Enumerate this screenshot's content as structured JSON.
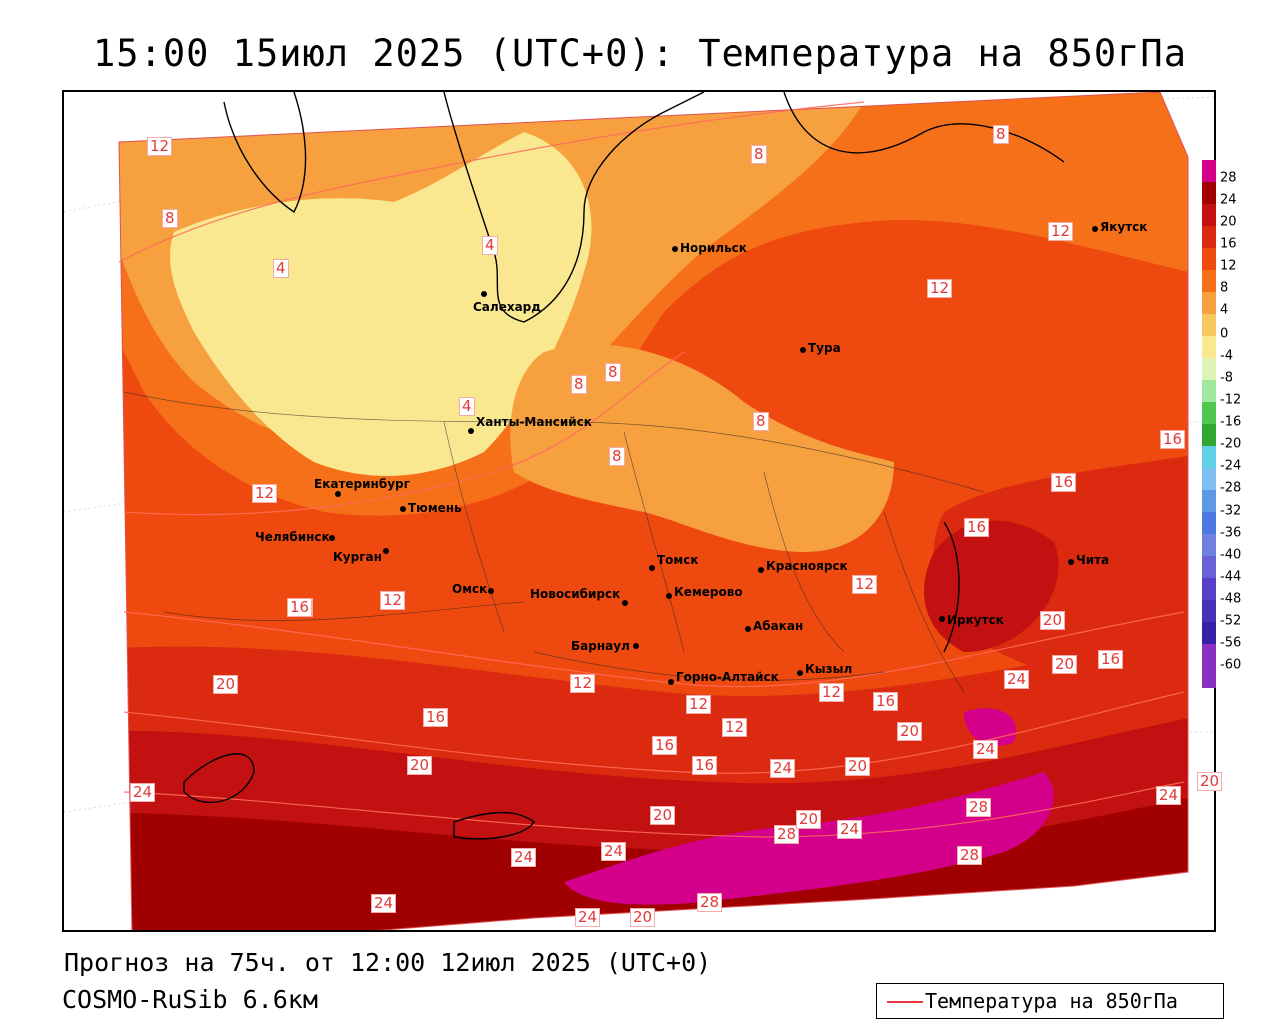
{
  "title": "15:00 15июл 2025 (UTC+0): Температура на 850гПа",
  "footer": {
    "forecast": "Прогноз на 75ч. от 12:00 12июл 2025 (UTC+0)",
    "model": "COSMO-RuSib 6.6км"
  },
  "legend": {
    "label": "Температура на 850гПа",
    "line_color": "#e8343c"
  },
  "colorbar": {
    "ticks": [
      "28",
      "24",
      "20",
      "16",
      "12",
      "8",
      "4",
      "0",
      "-4",
      "-8",
      "-12",
      "-16",
      "-20",
      "-24",
      "-28",
      "-32",
      "-36",
      "-40",
      "-44",
      "-48",
      "-52",
      "-56",
      "-60"
    ],
    "colors": [
      "#d4008c",
      "#a00000",
      "#c31010",
      "#dc2a10",
      "#ee4a10",
      "#f6701a",
      "#f6a040",
      "#f8c860",
      "#fae890",
      "#dff5b8",
      "#a0e8a0",
      "#50c850",
      "#30a830",
      "#60d0e8",
      "#80c0f0",
      "#6098e8",
      "#4c78e0",
      "#7080e0",
      "#6a60d8",
      "#5840c8",
      "#4830b8",
      "#3820a8",
      "#8a30c0"
    ]
  },
  "cities": [
    {
      "name": "Салехард"
    },
    {
      "name": "Норильск"
    },
    {
      "name": "Якутск"
    },
    {
      "name": "Тура"
    },
    {
      "name": "Ханты-Мансийск"
    },
    {
      "name": "Екатеринбург"
    },
    {
      "name": "Тюмень"
    },
    {
      "name": "Челябинск"
    },
    {
      "name": "Курган"
    },
    {
      "name": "Омск"
    },
    {
      "name": "Новосибирск"
    },
    {
      "name": "Томск"
    },
    {
      "name": "Кемерово"
    },
    {
      "name": "Красноярск"
    },
    {
      "name": "Барнаул"
    },
    {
      "name": "Абакан"
    },
    {
      "name": "Горно-Алтайск"
    },
    {
      "name": "Кызыл"
    },
    {
      "name": "Иркутск"
    },
    {
      "name": "Чита"
    }
  ],
  "contour_labels": [
    "12",
    "8",
    "4",
    "4",
    "8",
    "8",
    "8",
    "8",
    "8",
    "8",
    "12",
    "12",
    "4",
    "12",
    "16",
    "12",
    "12",
    "12",
    "16",
    "16",
    "16",
    "16",
    "20",
    "20",
    "20",
    "16",
    "16",
    "12",
    "12",
    "16",
    "20",
    "24",
    "24",
    "24",
    "20",
    "24",
    "20",
    "28",
    "20",
    "24",
    "28",
    "28",
    "24",
    "24",
    "24",
    "20",
    "28",
    "24",
    "20",
    "20",
    "24",
    "16",
    "12",
    "16"
  ]
}
